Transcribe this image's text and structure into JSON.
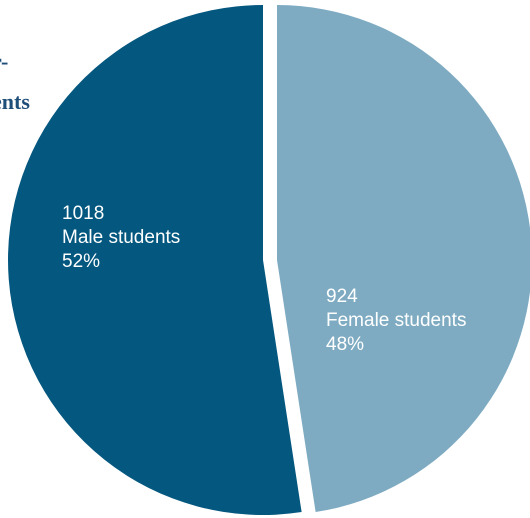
{
  "title_fragment": {
    "line1": "r-",
    "line2": "ents"
  },
  "chart_data": {
    "type": "pie",
    "slices": [
      {
        "name": "Male students",
        "value": 1018,
        "percent": "52%",
        "color": "#04577f"
      },
      {
        "name": "Female students",
        "value": 924,
        "percent": "48%",
        "color": "#7eabc2"
      }
    ],
    "legend": "none",
    "exploded": true
  }
}
